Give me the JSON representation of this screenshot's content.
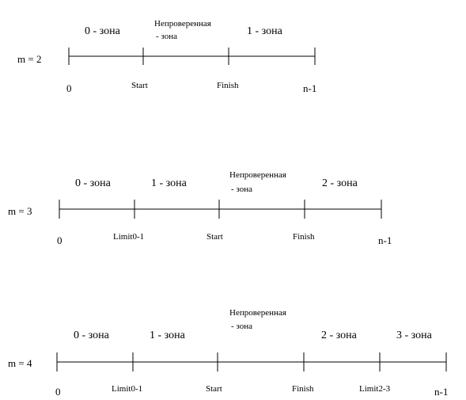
{
  "diagrams": [
    {
      "m_label": "m = 2",
      "zones": [
        "0 - зона",
        "Непроверенная",
        "1 - зона"
      ],
      "zone_subs": [
        "",
        "- зона",
        ""
      ],
      "points": [
        "0",
        "Start",
        "Finish",
        "n-1"
      ]
    },
    {
      "m_label": "m = 3",
      "zones": [
        "0 - зона",
        "1 - зона",
        "Непроверенная",
        "2 - зона"
      ],
      "zone_subs": [
        "",
        "",
        "- зона",
        ""
      ],
      "points": [
        "0",
        "Limit0-1",
        "Start",
        "Finish",
        "n-1"
      ]
    },
    {
      "m_label": "m = 4",
      "zones": [
        "0 - зона",
        "1 - зона",
        "Непроверенная",
        "2 - зона",
        "3 - зона"
      ],
      "zone_subs": [
        "",
        "",
        "- зона",
        "",
        ""
      ],
      "points": [
        "0",
        "Limit0-1",
        "Start",
        "Finish",
        "Limit2-3",
        "n-1"
      ]
    }
  ]
}
